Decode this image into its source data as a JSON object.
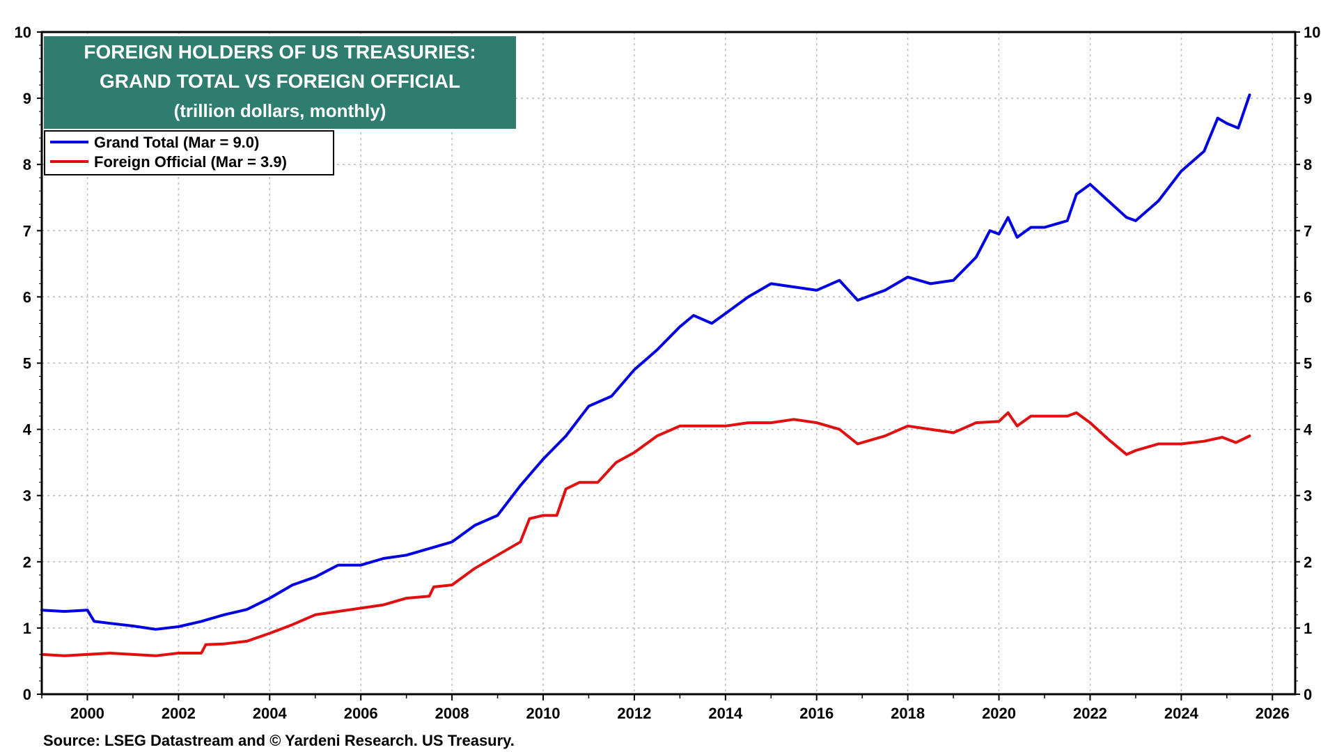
{
  "chart_data": {
    "type": "line",
    "title_lines": [
      "FOREIGN HOLDERS OF US TREASURIES:",
      "GRAND TOTAL VS FOREIGN OFFICIAL",
      "(trillion dollars, monthly)"
    ],
    "source": "Source: LSEG Datastream and © Yardeni Research. US Treasury.",
    "xlim": [
      1999.0,
      2026.5
    ],
    "ylim": [
      0,
      10
    ],
    "x_ticks": [
      "2000",
      "2002",
      "2004",
      "2006",
      "2008",
      "2010",
      "2012",
      "2014",
      "2016",
      "2018",
      "2020",
      "2022",
      "2024",
      "2026"
    ],
    "y_ticks": [
      "0",
      "1",
      "2",
      "3",
      "4",
      "5",
      "6",
      "7",
      "8",
      "9",
      "10"
    ],
    "grid": true,
    "legend_position": "top-left",
    "colors": {
      "title_bg": "#2e7d6e",
      "grand_total": "#0000e0",
      "foreign_official": "#e01010"
    },
    "series": [
      {
        "name": "Grand Total (Mar = 9.0)",
        "color": "#0000e0",
        "points": [
          [
            1999.0,
            1.27
          ],
          [
            1999.5,
            1.25
          ],
          [
            2000.0,
            1.27
          ],
          [
            2000.15,
            1.1
          ],
          [
            2000.5,
            1.07
          ],
          [
            2001.0,
            1.03
          ],
          [
            2001.5,
            0.98
          ],
          [
            2002.0,
            1.02
          ],
          [
            2002.5,
            1.1
          ],
          [
            2003.0,
            1.2
          ],
          [
            2003.5,
            1.28
          ],
          [
            2004.0,
            1.45
          ],
          [
            2004.5,
            1.65
          ],
          [
            2005.0,
            1.77
          ],
          [
            2005.5,
            1.95
          ],
          [
            2006.0,
            1.95
          ],
          [
            2006.5,
            2.05
          ],
          [
            2007.0,
            2.1
          ],
          [
            2007.5,
            2.2
          ],
          [
            2008.0,
            2.3
          ],
          [
            2008.5,
            2.55
          ],
          [
            2009.0,
            2.7
          ],
          [
            2009.5,
            3.15
          ],
          [
            2010.0,
            3.55
          ],
          [
            2010.5,
            3.9
          ],
          [
            2011.0,
            4.35
          ],
          [
            2011.5,
            4.5
          ],
          [
            2012.0,
            4.9
          ],
          [
            2012.5,
            5.2
          ],
          [
            2013.0,
            5.55
          ],
          [
            2013.3,
            5.72
          ],
          [
            2013.7,
            5.6
          ],
          [
            2014.0,
            5.75
          ],
          [
            2014.5,
            6.0
          ],
          [
            2015.0,
            6.2
          ],
          [
            2015.5,
            6.15
          ],
          [
            2016.0,
            6.1
          ],
          [
            2016.5,
            6.25
          ],
          [
            2016.9,
            5.95
          ],
          [
            2017.5,
            6.1
          ],
          [
            2018.0,
            6.3
          ],
          [
            2018.5,
            6.2
          ],
          [
            2019.0,
            6.25
          ],
          [
            2019.5,
            6.6
          ],
          [
            2019.8,
            7.0
          ],
          [
            2020.0,
            6.95
          ],
          [
            2020.2,
            7.2
          ],
          [
            2020.4,
            6.9
          ],
          [
            2020.7,
            7.05
          ],
          [
            2021.0,
            7.05
          ],
          [
            2021.5,
            7.15
          ],
          [
            2021.7,
            7.55
          ],
          [
            2022.0,
            7.7
          ],
          [
            2022.4,
            7.45
          ],
          [
            2022.8,
            7.2
          ],
          [
            2023.0,
            7.15
          ],
          [
            2023.5,
            7.45
          ],
          [
            2024.0,
            7.9
          ],
          [
            2024.5,
            8.2
          ],
          [
            2024.8,
            8.7
          ],
          [
            2025.0,
            8.62
          ],
          [
            2025.25,
            8.55
          ],
          [
            2025.5,
            9.05
          ]
        ]
      },
      {
        "name": "Foreign Official (Mar = 3.9)",
        "color": "#e01010",
        "points": [
          [
            1999.0,
            0.6
          ],
          [
            1999.5,
            0.58
          ],
          [
            2000.0,
            0.6
          ],
          [
            2000.5,
            0.62
          ],
          [
            2001.0,
            0.6
          ],
          [
            2001.5,
            0.58
          ],
          [
            2002.0,
            0.62
          ],
          [
            2002.5,
            0.62
          ],
          [
            2002.6,
            0.75
          ],
          [
            2003.0,
            0.76
          ],
          [
            2003.5,
            0.8
          ],
          [
            2004.0,
            0.92
          ],
          [
            2004.5,
            1.05
          ],
          [
            2005.0,
            1.2
          ],
          [
            2005.5,
            1.25
          ],
          [
            2006.0,
            1.3
          ],
          [
            2006.5,
            1.35
          ],
          [
            2007.0,
            1.45
          ],
          [
            2007.5,
            1.48
          ],
          [
            2007.6,
            1.62
          ],
          [
            2008.0,
            1.65
          ],
          [
            2008.5,
            1.9
          ],
          [
            2009.0,
            2.1
          ],
          [
            2009.5,
            2.3
          ],
          [
            2009.7,
            2.65
          ],
          [
            2010.0,
            2.7
          ],
          [
            2010.3,
            2.7
          ],
          [
            2010.5,
            3.1
          ],
          [
            2010.8,
            3.2
          ],
          [
            2011.2,
            3.2
          ],
          [
            2011.6,
            3.5
          ],
          [
            2012.0,
            3.65
          ],
          [
            2012.5,
            3.9
          ],
          [
            2013.0,
            4.05
          ],
          [
            2013.5,
            4.05
          ],
          [
            2014.0,
            4.05
          ],
          [
            2014.5,
            4.1
          ],
          [
            2015.0,
            4.1
          ],
          [
            2015.5,
            4.15
          ],
          [
            2016.0,
            4.1
          ],
          [
            2016.5,
            4.0
          ],
          [
            2016.9,
            3.78
          ],
          [
            2017.5,
            3.9
          ],
          [
            2018.0,
            4.05
          ],
          [
            2018.5,
            4.0
          ],
          [
            2019.0,
            3.95
          ],
          [
            2019.5,
            4.1
          ],
          [
            2020.0,
            4.12
          ],
          [
            2020.2,
            4.25
          ],
          [
            2020.4,
            4.05
          ],
          [
            2020.7,
            4.2
          ],
          [
            2021.0,
            4.2
          ],
          [
            2021.5,
            4.2
          ],
          [
            2021.7,
            4.25
          ],
          [
            2022.0,
            4.1
          ],
          [
            2022.4,
            3.85
          ],
          [
            2022.8,
            3.62
          ],
          [
            2023.0,
            3.68
          ],
          [
            2023.5,
            3.78
          ],
          [
            2024.0,
            3.78
          ],
          [
            2024.5,
            3.82
          ],
          [
            2024.9,
            3.88
          ],
          [
            2025.2,
            3.8
          ],
          [
            2025.5,
            3.9
          ]
        ]
      }
    ]
  }
}
